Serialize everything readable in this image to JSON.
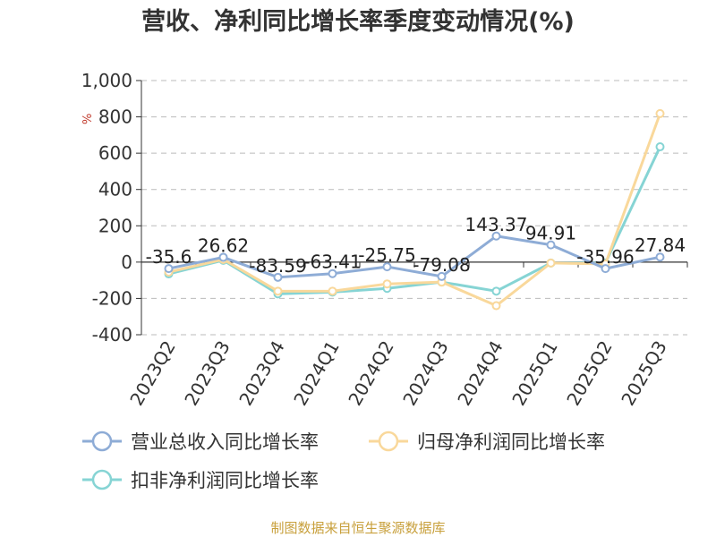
{
  "title": "营收、净利同比增长率季度变动情况(%)",
  "source": "制图数据来自恒生聚源数据库",
  "chart_data": {
    "type": "line",
    "title": "营收、净利同比增长率季度变动情况(%)",
    "ylabel": "%",
    "ylim": [
      -400,
      1000
    ],
    "yticks": [
      -400,
      -200,
      0,
      200,
      400,
      600,
      800,
      1000
    ],
    "ytick_labels": [
      "-400",
      "-200",
      "0",
      "200",
      "400",
      "600",
      "800",
      "1,000"
    ],
    "grid": true,
    "legend_position": "bottom",
    "categories": [
      "2023Q2",
      "2023Q3",
      "2023Q4",
      "2024Q1",
      "2024Q2",
      "2024Q3",
      "2024Q4",
      "2025Q1",
      "2025Q2",
      "2025Q3"
    ],
    "series": [
      {
        "name": "营业总收入同比增长率",
        "color": "#8eacd6",
        "values": [
          -35.6,
          26.62,
          -83.59,
          -63.41,
          -25.75,
          -79.08,
          143.37,
          94.91,
          -35.96,
          27.84
        ],
        "labels": [
          "-35.6",
          "26.62",
          "-83.59",
          "-63.41",
          "-25.75",
          "-79.08",
          "143.37",
          "94.91",
          "-35.96",
          "27.84"
        ]
      },
      {
        "name": "归母净利润同比增长率",
        "color": "#f9d89b",
        "values": [
          -55,
          15,
          -160,
          -160,
          -120,
          -110,
          -240,
          -5,
          -10,
          818
        ]
      },
      {
        "name": "扣非净利润同比增长率",
        "color": "#86d4d4",
        "values": [
          -65,
          10,
          -175,
          -165,
          -145,
          -110,
          -160,
          -5,
          -5,
          635
        ]
      }
    ]
  }
}
